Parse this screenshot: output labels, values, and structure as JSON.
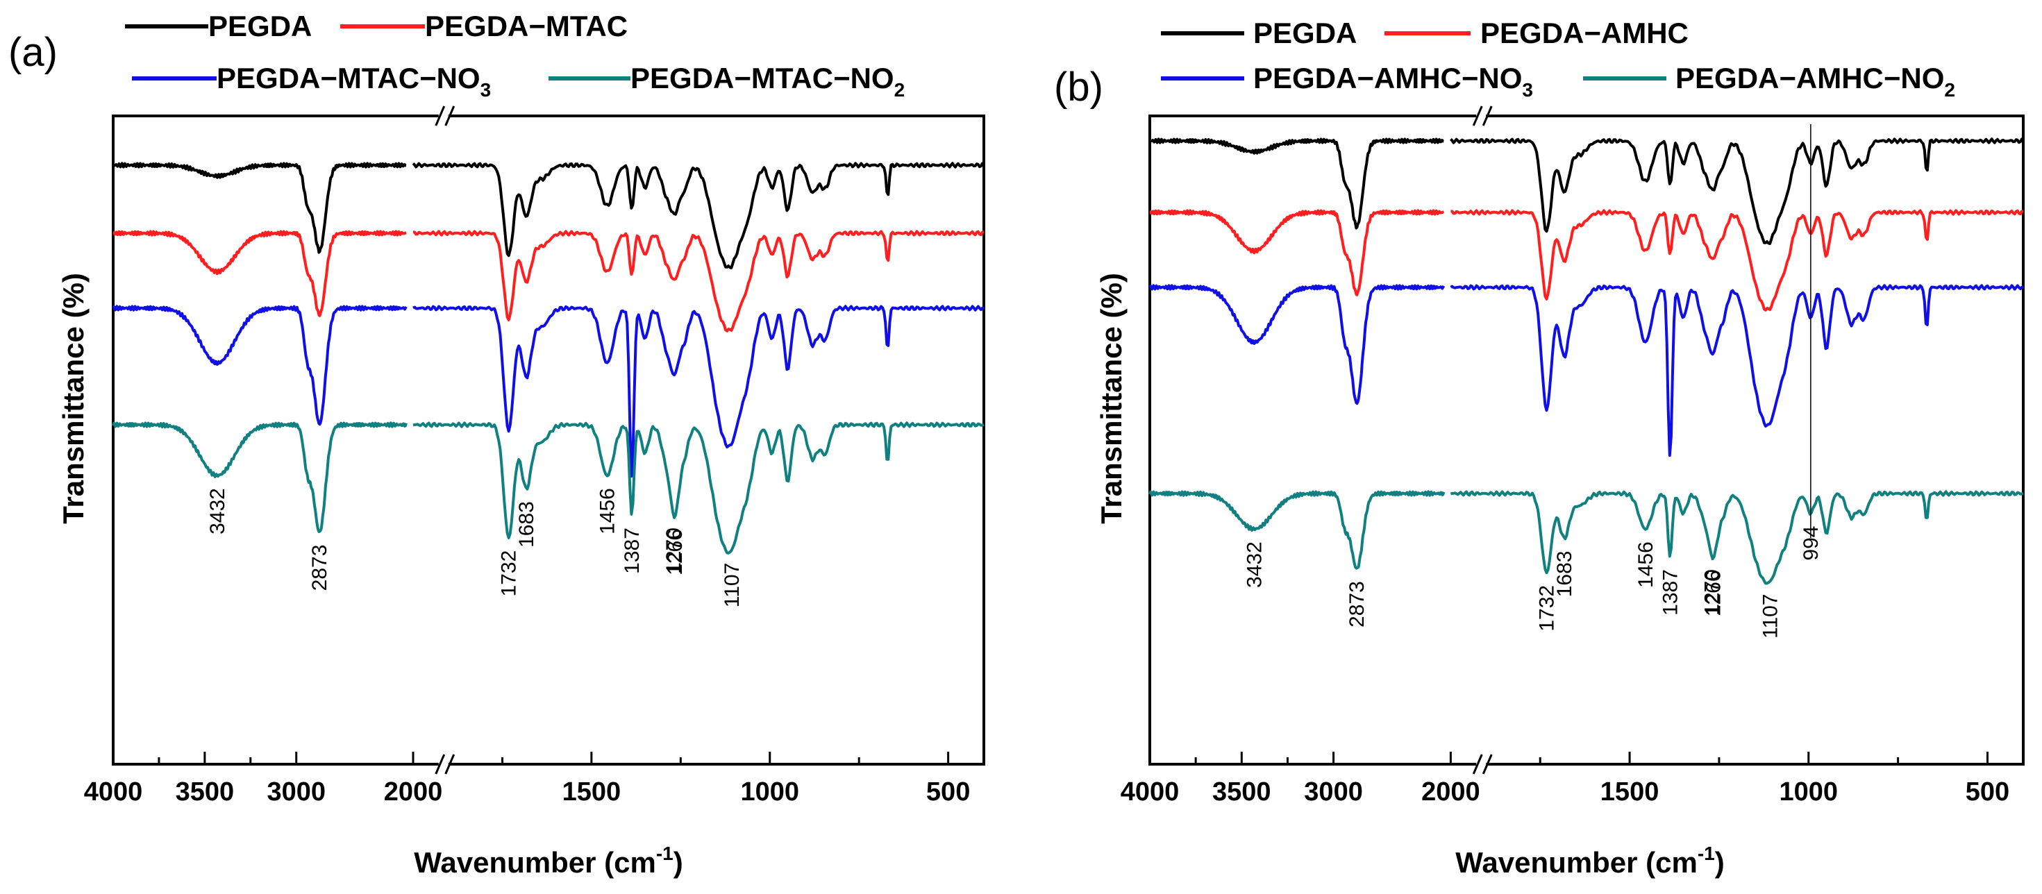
{
  "chart_data": [
    {
      "type": "line",
      "panel_label": "(a)",
      "xlabel": "Wavenumber (cm",
      "xlabel_sup": "-1",
      "xlabel_close": ")",
      "ylabel": "Transmittance (%)",
      "x_reversed": true,
      "x_axis_break": [
        2000,
        2400
      ],
      "ticks": [
        {
          "value": 4000,
          "label": "4000"
        },
        {
          "value": 3500,
          "label": "3500"
        },
        {
          "value": 3000,
          "label": "3000"
        },
        {
          "value": 2000,
          "label": "2000"
        },
        {
          "value": 1500,
          "label": "1500"
        },
        {
          "value": 1000,
          "label": "1000"
        },
        {
          "value": 500,
          "label": "500"
        }
      ],
      "series": [
        {
          "name": "PEGDA",
          "color": "#000000",
          "legend": {
            "text": "PEGDA",
            "sub": ""
          }
        },
        {
          "name": "PEGDA−MTAC",
          "color": "#ff1f1f",
          "legend": {
            "text": "PEGDA−MTAC",
            "sub": ""
          }
        },
        {
          "name": "PEGDA−MTAC−NO3",
          "color": "#1010e6",
          "legend": {
            "text": "PEGDA−MTAC−NO",
            "sub": "3"
          }
        },
        {
          "name": "PEGDA−MTAC−NO2",
          "color": "#108080",
          "legend": {
            "text": "PEGDA−MTAC−NO",
            "sub": "2"
          }
        }
      ],
      "peak_labels": [
        {
          "wavenumber": 3432,
          "label": "3432"
        },
        {
          "wavenumber": 2873,
          "label": "2873"
        },
        {
          "wavenumber": 1732,
          "label": "1732"
        },
        {
          "wavenumber": 1683,
          "label": "1683"
        },
        {
          "wavenumber": 1456,
          "label": "1456"
        },
        {
          "wavenumber": 1387,
          "label": "1387"
        },
        {
          "wavenumber": 1266,
          "label": "1266"
        },
        {
          "wavenumber": 1270,
          "label": "1270"
        },
        {
          "wavenumber": 1107,
          "label": "1107"
        }
      ]
    },
    {
      "type": "line",
      "panel_label": "(b)",
      "xlabel": "Wavenumber (cm",
      "xlabel_sup": "-1",
      "xlabel_close": ")",
      "ylabel": "Transmittance (%)",
      "x_reversed": true,
      "x_axis_break": [
        2000,
        2400
      ],
      "ticks": [
        {
          "value": 4000,
          "label": "4000"
        },
        {
          "value": 3500,
          "label": "3500"
        },
        {
          "value": 3000,
          "label": "3000"
        },
        {
          "value": 2000,
          "label": "2000"
        },
        {
          "value": 1500,
          "label": "1500"
        },
        {
          "value": 1000,
          "label": "1000"
        },
        {
          "value": 500,
          "label": "500"
        }
      ],
      "series": [
        {
          "name": "PEGDA",
          "color": "#000000",
          "legend": {
            "text": "PEGDA",
            "sub": ""
          }
        },
        {
          "name": "PEGDA−AMHC",
          "color": "#ff1f1f",
          "legend": {
            "text": "PEGDA−AMHC",
            "sub": ""
          }
        },
        {
          "name": "PEGDA−AMHC−NO3",
          "color": "#1010e6",
          "legend": {
            "text": "PEGDA−AMHC−NO",
            "sub": "3"
          }
        },
        {
          "name": "PEGDA−AMHC−NO2",
          "color": "#108080",
          "legend": {
            "text": "PEGDA−AMHC−NO",
            "sub": "2"
          }
        }
      ],
      "peak_labels": [
        {
          "wavenumber": 3432,
          "label": "3432"
        },
        {
          "wavenumber": 2873,
          "label": "2873"
        },
        {
          "wavenumber": 1732,
          "label": "1732"
        },
        {
          "wavenumber": 1683,
          "label": "1683"
        },
        {
          "wavenumber": 1456,
          "label": "1456"
        },
        {
          "wavenumber": 1387,
          "label": "1387"
        },
        {
          "wavenumber": 1266,
          "label": "1266"
        },
        {
          "wavenumber": 1270,
          "label": "1270"
        },
        {
          "wavenumber": 1107,
          "label": "1107"
        },
        {
          "wavenumber": 994,
          "label": "994"
        }
      ]
    }
  ]
}
